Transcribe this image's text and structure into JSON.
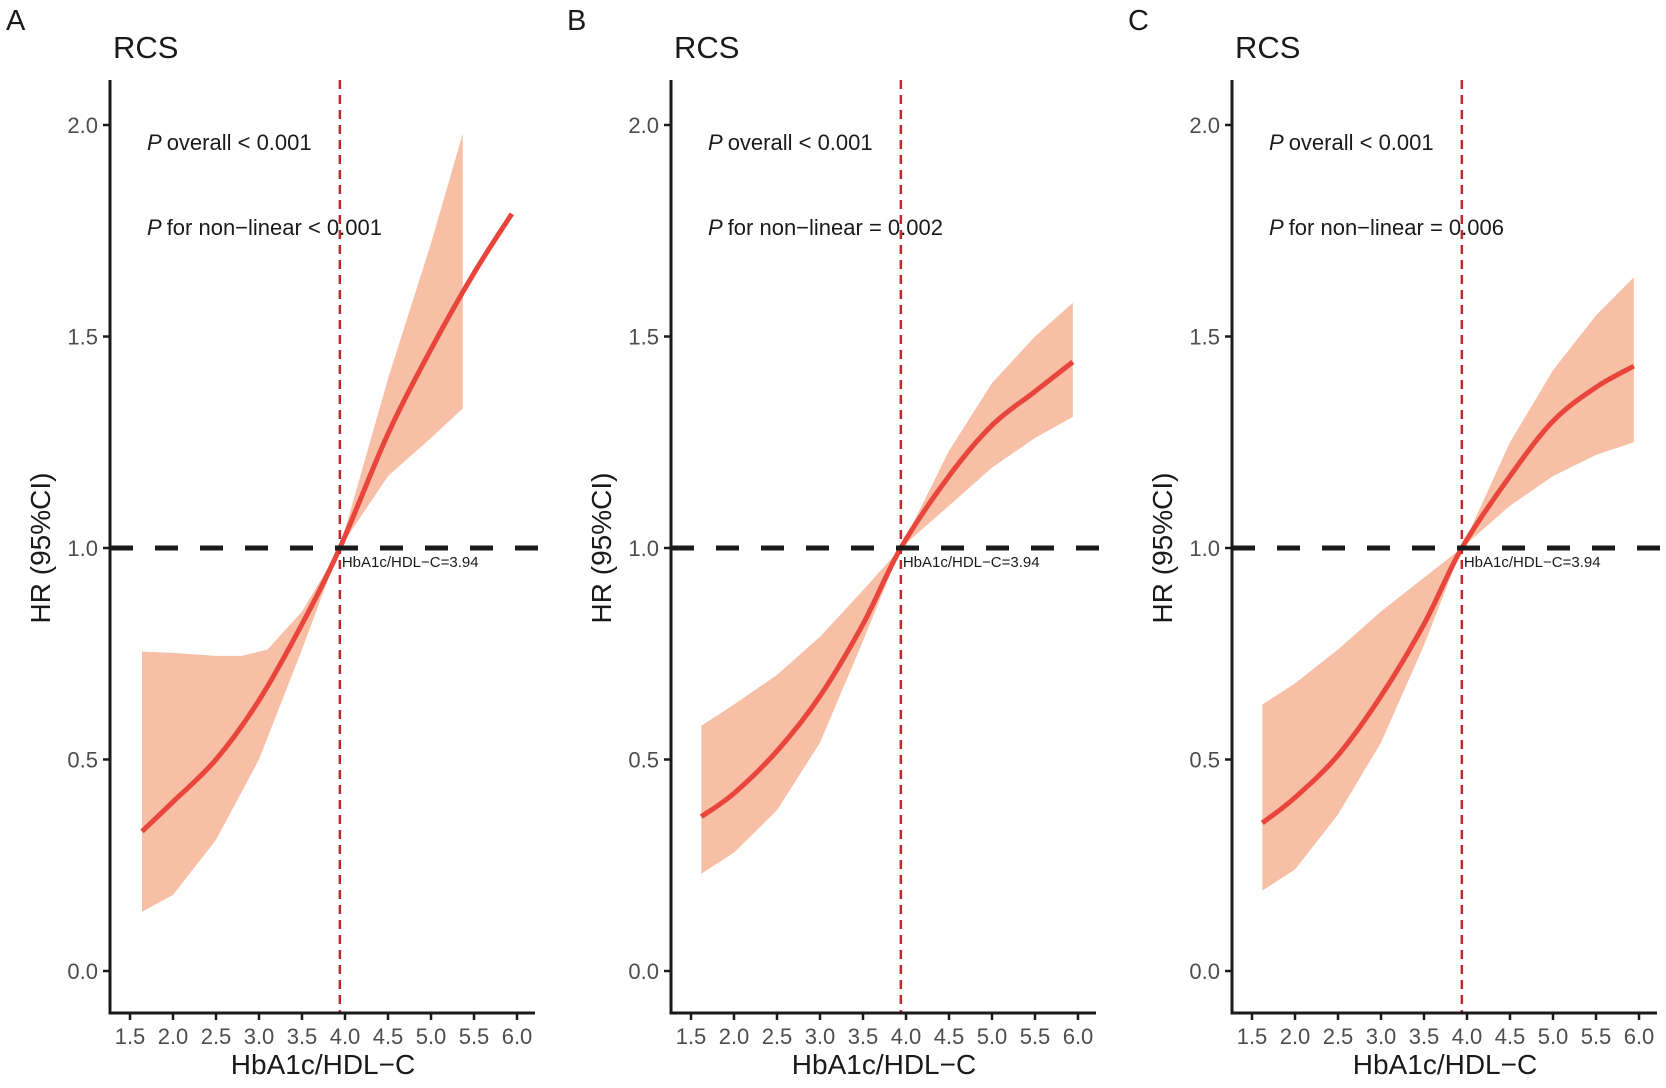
{
  "colors": {
    "line": "#e8453c",
    "ci_fill": "#f7bfa6",
    "ref_vline": "#c1272d",
    "ref_hline": "#1a1a1a",
    "axis": "#1a1a1a"
  },
  "chart_data": [
    {
      "type": "line",
      "panel_label": "A",
      "title": "RCS",
      "xlabel": "HbA1c/HDL−C",
      "ylabel": "HR (95%CI)",
      "xlim": [
        1.27,
        6.2
      ],
      "ylim": [
        -0.1,
        2.1
      ],
      "xticks": [
        "1.5",
        "2.0",
        "2.5",
        "3.0",
        "3.5",
        "4.0",
        "4.5",
        "5.0",
        "5.5",
        "6.0"
      ],
      "yticks": [
        "0.0",
        "0.5",
        "1.0",
        "1.5",
        "2.0"
      ],
      "annotations": {
        "p_overall_label": "P",
        "p_overall": "overall < 0.001",
        "p_nonlinear_label": "P",
        "p_nonlinear": "for non−linear < 0.001",
        "ref_label": "HbA1c/HDL−C=3.94"
      },
      "reference": {
        "x": 3.94,
        "y": 1.0
      },
      "series": [
        {
          "name": "HR",
          "x": [
            1.64,
            2.0,
            2.5,
            3.0,
            3.5,
            3.94,
            4.5,
            5.0,
            5.5,
            5.94
          ],
          "y": [
            0.33,
            0.4,
            0.5,
            0.64,
            0.82,
            1.0,
            1.27,
            1.47,
            1.65,
            1.79
          ]
        },
        {
          "name": "CI upper",
          "x": [
            1.64,
            2.0,
            2.5,
            2.8,
            3.1,
            3.5,
            3.94,
            4.5,
            5.0,
            5.37
          ],
          "y": [
            0.755,
            0.752,
            0.745,
            0.745,
            0.76,
            0.85,
            1.0,
            1.4,
            1.72,
            1.98
          ]
        },
        {
          "name": "CI lower",
          "x": [
            1.64,
            2.0,
            2.5,
            3.0,
            3.5,
            3.94,
            4.5,
            5.0,
            5.37
          ],
          "y": [
            0.14,
            0.18,
            0.31,
            0.5,
            0.76,
            1.0,
            1.17,
            1.26,
            1.33
          ]
        }
      ]
    },
    {
      "type": "line",
      "panel_label": "B",
      "title": "RCS",
      "xlabel": "HbA1c/HDL−C",
      "ylabel": "HR (95%CI)",
      "xlim": [
        1.27,
        6.2
      ],
      "ylim": [
        -0.1,
        2.1
      ],
      "xticks": [
        "1.5",
        "2.0",
        "2.5",
        "3.0",
        "3.5",
        "4.0",
        "4.5",
        "5.0",
        "5.5",
        "6.0"
      ],
      "yticks": [
        "0.0",
        "0.5",
        "1.0",
        "1.5",
        "2.0"
      ],
      "annotations": {
        "p_overall_label": "P",
        "p_overall": "overall < 0.001",
        "p_nonlinear_label": "P",
        "p_nonlinear": "for non−linear = 0.002",
        "ref_label": "HbA1c/HDL−C=3.94"
      },
      "reference": {
        "x": 3.94,
        "y": 1.0
      },
      "series": [
        {
          "name": "HR",
          "x": [
            1.62,
            2.0,
            2.5,
            3.0,
            3.5,
            3.94,
            4.5,
            5.0,
            5.5,
            5.94
          ],
          "y": [
            0.365,
            0.42,
            0.52,
            0.65,
            0.82,
            1.0,
            1.17,
            1.29,
            1.37,
            1.44
          ]
        },
        {
          "name": "CI upper",
          "x": [
            1.62,
            2.0,
            2.5,
            3.0,
            3.5,
            3.94,
            4.5,
            5.0,
            5.5,
            5.94
          ],
          "y": [
            0.58,
            0.63,
            0.7,
            0.79,
            0.9,
            1.0,
            1.23,
            1.39,
            1.5,
            1.58
          ]
        },
        {
          "name": "CI lower",
          "x": [
            1.62,
            2.0,
            2.5,
            3.0,
            3.5,
            3.94,
            4.5,
            5.0,
            5.5,
            5.94
          ],
          "y": [
            0.23,
            0.28,
            0.38,
            0.54,
            0.78,
            1.0,
            1.1,
            1.19,
            1.26,
            1.31
          ]
        }
      ]
    },
    {
      "type": "line",
      "panel_label": "C",
      "title": "RCS",
      "xlabel": "HbA1c/HDL−C",
      "ylabel": "HR (95%CI)",
      "xlim": [
        1.27,
        6.2
      ],
      "ylim": [
        -0.1,
        2.1
      ],
      "xticks": [
        "1.5",
        "2.0",
        "2.5",
        "3.0",
        "3.5",
        "4.0",
        "4.5",
        "5.0",
        "5.5",
        "6.0"
      ],
      "yticks": [
        "0.0",
        "0.5",
        "1.0",
        "1.5",
        "2.0"
      ],
      "annotations": {
        "p_overall_label": "P",
        "p_overall": "overall < 0.001",
        "p_nonlinear_label": "P",
        "p_nonlinear": "for non−linear = 0.006",
        "ref_label": "HbA1c/HDL−C=3.94"
      },
      "reference": {
        "x": 3.94,
        "y": 1.0
      },
      "series": [
        {
          "name": "HR",
          "x": [
            1.62,
            2.0,
            2.5,
            3.0,
            3.5,
            3.94,
            4.5,
            5.0,
            5.5,
            5.94
          ],
          "y": [
            0.35,
            0.41,
            0.51,
            0.65,
            0.82,
            1.0,
            1.17,
            1.3,
            1.38,
            1.43
          ]
        },
        {
          "name": "CI upper",
          "x": [
            1.62,
            2.0,
            2.5,
            3.0,
            3.5,
            3.94,
            4.5,
            5.0,
            5.5,
            5.94
          ],
          "y": [
            0.63,
            0.68,
            0.76,
            0.85,
            0.93,
            1.0,
            1.25,
            1.42,
            1.55,
            1.64
          ]
        },
        {
          "name": "CI lower",
          "x": [
            1.62,
            2.0,
            2.5,
            3.0,
            3.5,
            3.94,
            4.5,
            5.0,
            5.5,
            5.94
          ],
          "y": [
            0.19,
            0.24,
            0.37,
            0.54,
            0.77,
            1.0,
            1.1,
            1.17,
            1.22,
            1.25
          ]
        }
      ]
    }
  ]
}
